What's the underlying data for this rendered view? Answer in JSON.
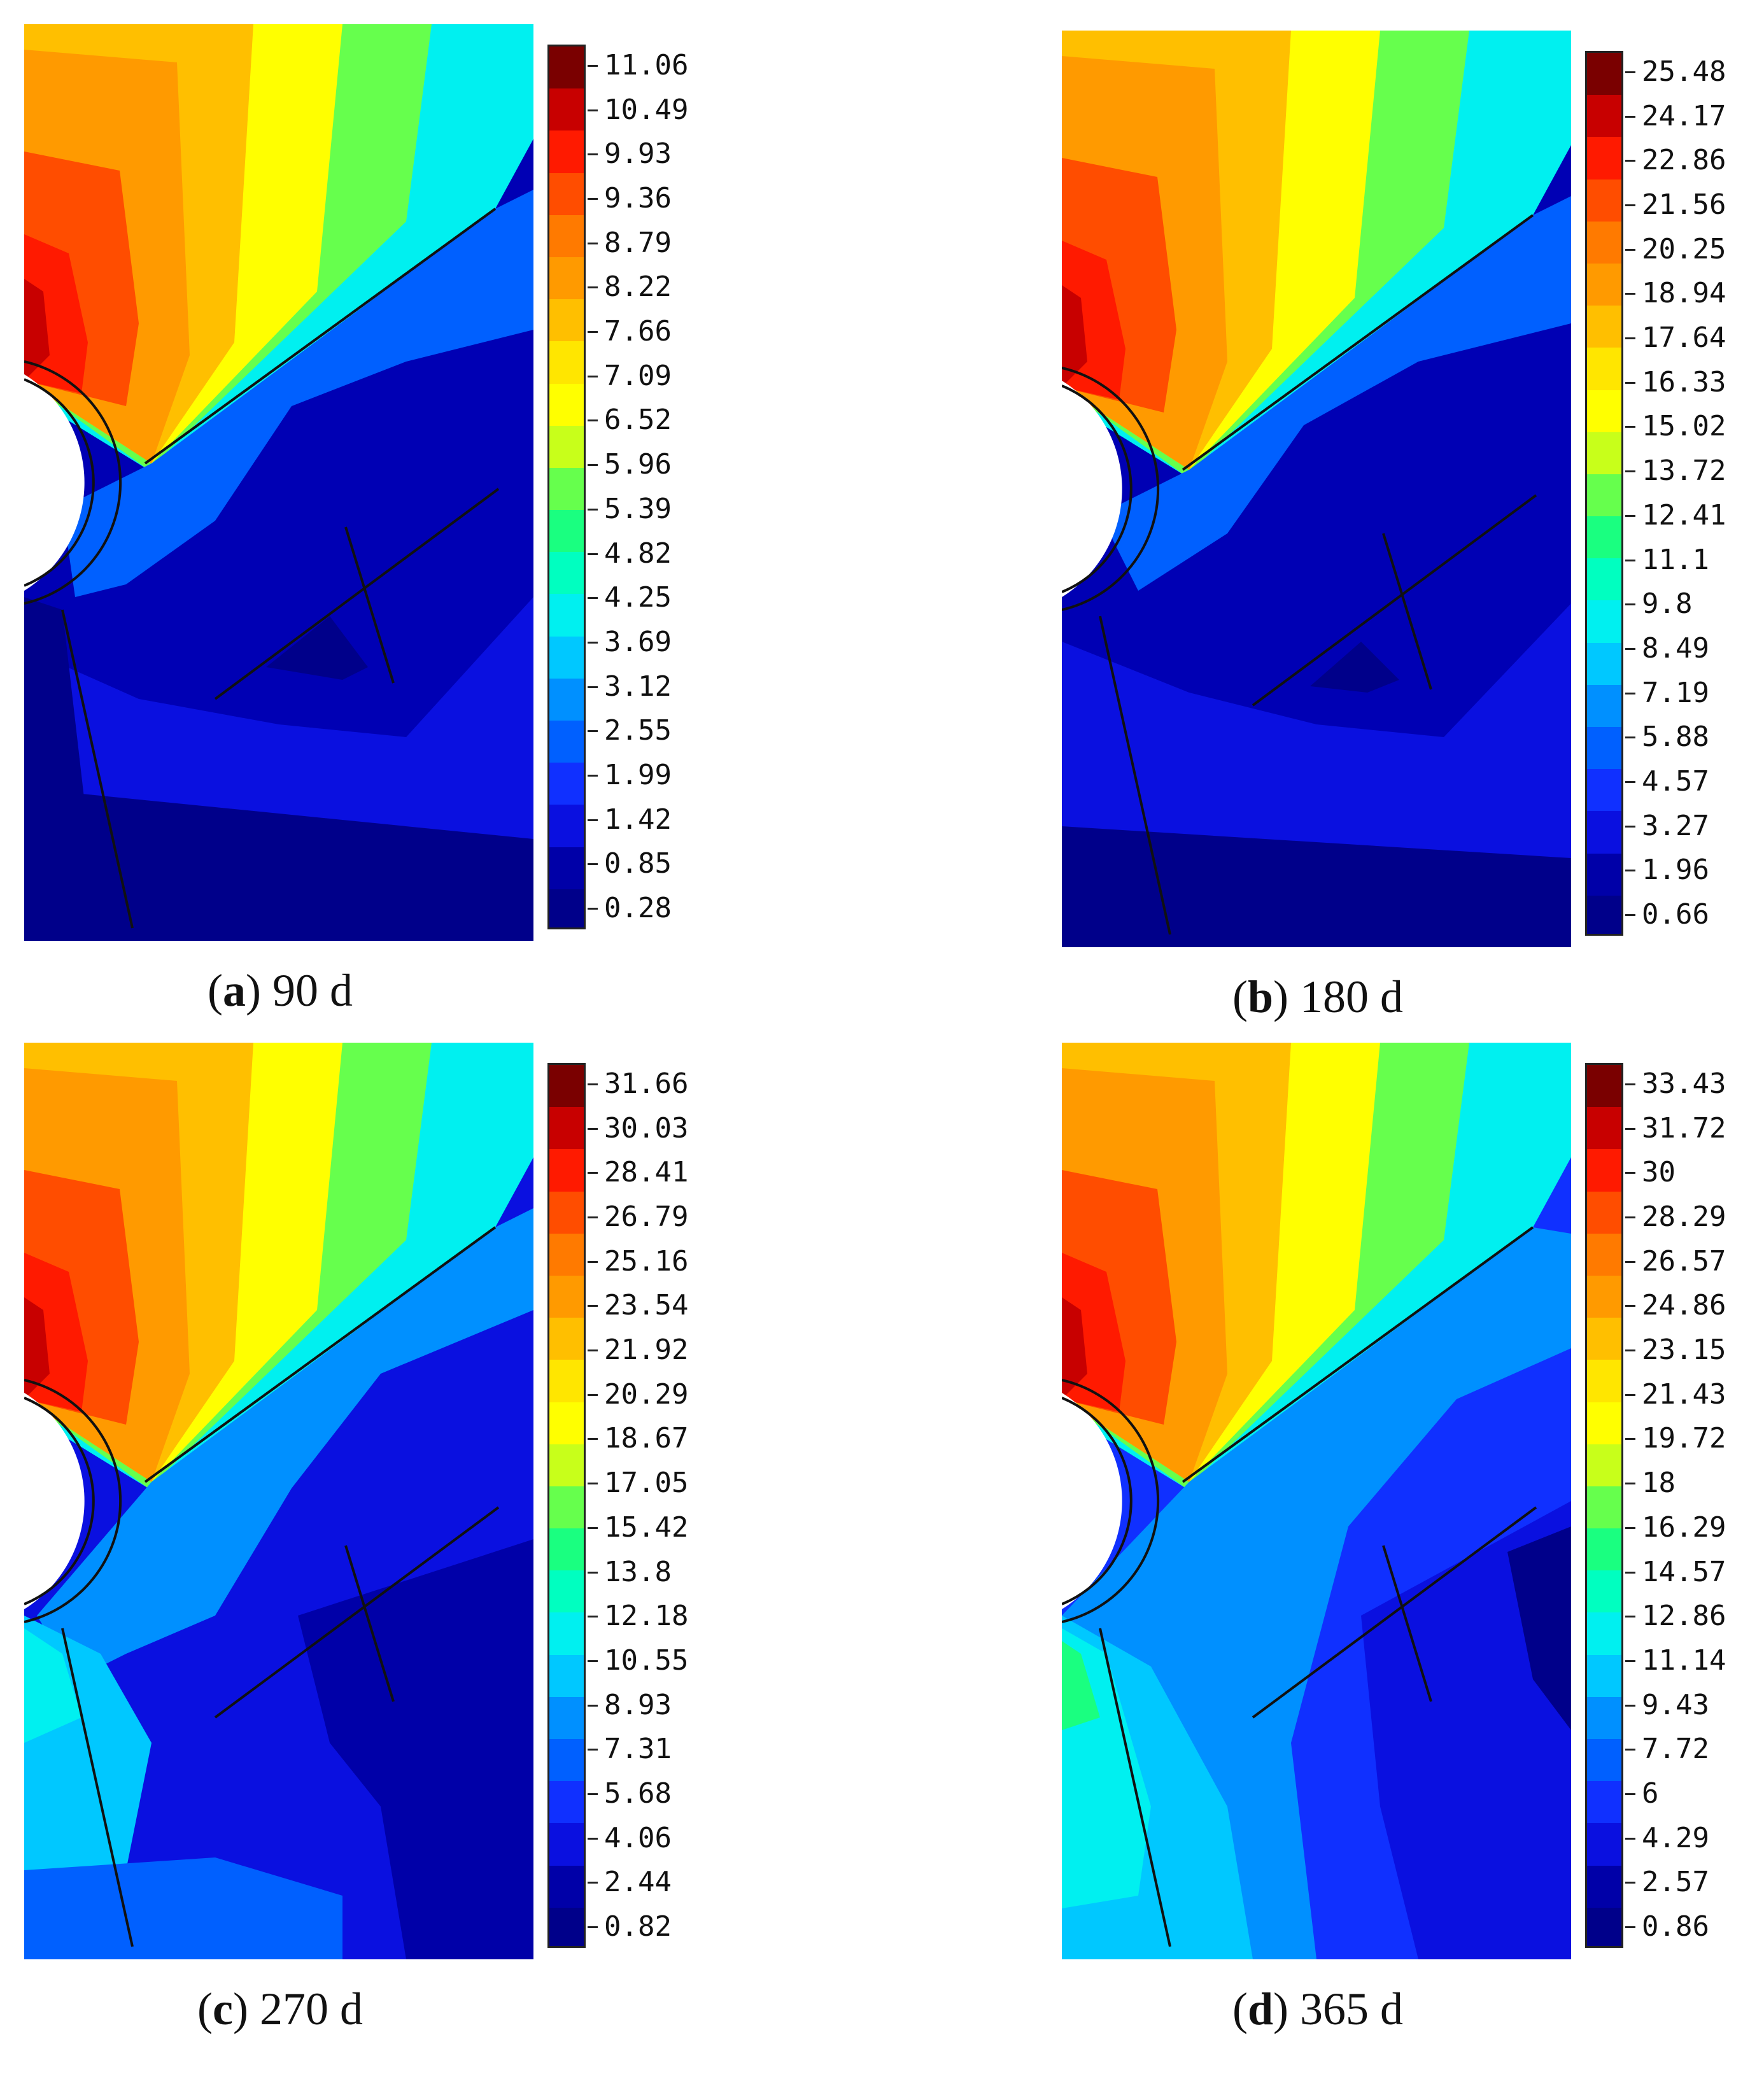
{
  "chart_data": [
    {
      "type": "heatmap",
      "panel_letter": "a",
      "caption": "90 d",
      "colorbar_ticks": [
        "11.06",
        "10.49",
        "9.93",
        "9.36",
        "8.79",
        "8.22",
        "7.66",
        "7.09",
        "6.52",
        "5.96",
        "5.39",
        "4.82",
        "4.25",
        "3.69",
        "3.12",
        "2.55",
        "1.99",
        "1.42",
        "0.85",
        "0.28"
      ],
      "colorbar_range": [
        0.28,
        11.06
      ]
    },
    {
      "type": "heatmap",
      "panel_letter": "b",
      "caption": "180 d",
      "colorbar_ticks": [
        "25.48",
        "24.17",
        "22.86",
        "21.56",
        "20.25",
        "18.94",
        "17.64",
        "16.33",
        "15.02",
        "13.72",
        "12.41",
        "11.1",
        "9.8",
        "8.49",
        "7.19",
        "5.88",
        "4.57",
        "3.27",
        "1.96",
        "0.66"
      ],
      "colorbar_range": [
        0.66,
        25.48
      ]
    },
    {
      "type": "heatmap",
      "panel_letter": "c",
      "caption": "270 d",
      "colorbar_ticks": [
        "31.66",
        "30.03",
        "28.41",
        "26.79",
        "25.16",
        "23.54",
        "21.92",
        "20.29",
        "18.67",
        "17.05",
        "15.42",
        "13.8",
        "12.18",
        "10.55",
        "8.93",
        "7.31",
        "5.68",
        "4.06",
        "2.44",
        "0.82"
      ],
      "colorbar_range": [
        0.82,
        31.66
      ]
    },
    {
      "type": "heatmap",
      "panel_letter": "d",
      "caption": "365 d",
      "colorbar_ticks": [
        "33.43",
        "31.72",
        "30",
        "28.29",
        "26.57",
        "24.86",
        "23.15",
        "21.43",
        "19.72",
        "18",
        "16.29",
        "14.57",
        "12.86",
        "11.14",
        "9.43",
        "7.72",
        "6",
        "4.29",
        "2.57",
        "0.86"
      ],
      "colorbar_range": [
        0.86,
        33.43
      ]
    }
  ],
  "colormap": [
    "#7a0000",
    "#c80000",
    "#ff1a00",
    "#ff4d00",
    "#ff7a00",
    "#ff9a00",
    "#ffbf00",
    "#ffe600",
    "#ffff00",
    "#c8ff1a",
    "#66ff4d",
    "#1aff80",
    "#00ffc0",
    "#00f0f0",
    "#00c8ff",
    "#0090ff",
    "#0060ff",
    "#1030ff",
    "#0a10e0",
    "#0000a8",
    "#00008a"
  ]
}
